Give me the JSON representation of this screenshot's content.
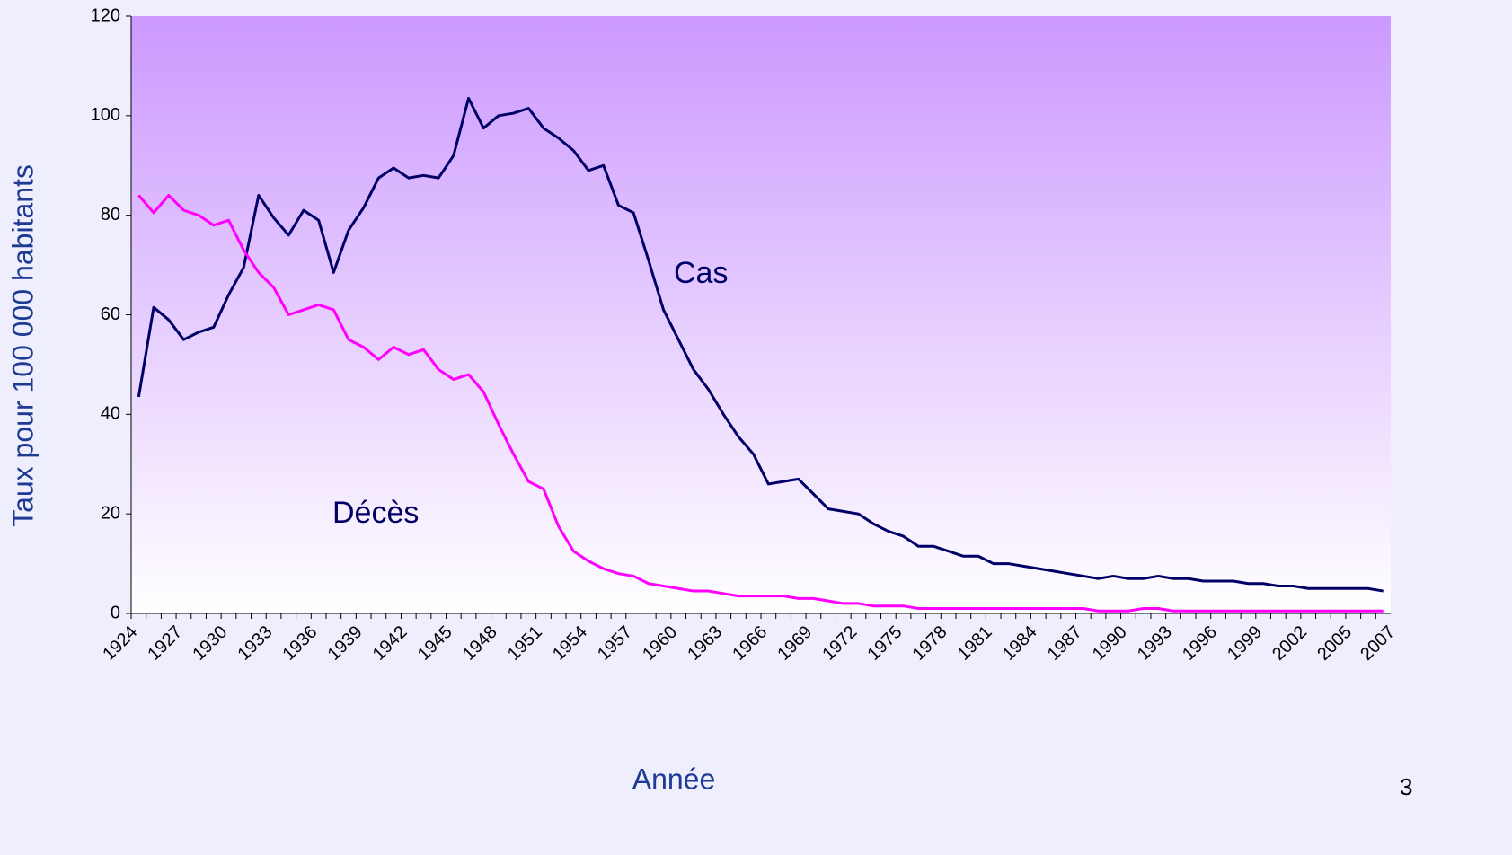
{
  "chart_data": {
    "type": "line",
    "x_label": "Année",
    "y_label": "Taux pour 100 000 habitants",
    "annotations": [
      "Cas",
      "Décès"
    ],
    "page_number": "3",
    "categories": [
      "1924",
      null,
      null,
      "1927",
      null,
      null,
      "1930",
      null,
      null,
      "1933",
      null,
      null,
      "1936",
      null,
      null,
      "1939",
      null,
      null,
      "1942",
      null,
      null,
      "1945",
      null,
      null,
      "1948",
      null,
      null,
      "1951",
      null,
      null,
      "1954",
      null,
      null,
      "1957",
      null,
      null,
      "1960",
      null,
      null,
      "1963",
      null,
      null,
      "1966",
      null,
      null,
      "1969",
      null,
      null,
      "1972",
      null,
      null,
      "1975",
      null,
      null,
      "1978",
      null,
      null,
      "1981",
      null,
      null,
      "1984",
      null,
      null,
      "1987",
      null,
      null,
      "1990",
      null,
      null,
      "1993",
      null,
      null,
      "1996",
      null,
      null,
      "1999",
      null,
      null,
      "2002",
      null,
      null,
      "2005",
      null,
      "2007"
    ],
    "series": [
      {
        "name": "Cas",
        "color": "#000066",
        "values": [
          43.5,
          61.5,
          59,
          55,
          56.5,
          57.5,
          64,
          69.5,
          84,
          79.5,
          76,
          81,
          79,
          68.5,
          77,
          81.5,
          87.5,
          89.5,
          87.5,
          88,
          87.5,
          92,
          103.5,
          97.5,
          100,
          100.5,
          101.5,
          97.5,
          95.5,
          93,
          89,
          90,
          82,
          80.5,
          71,
          61,
          55,
          49,
          45,
          40,
          35.5,
          32,
          26,
          26.5,
          27,
          24,
          21,
          20.5,
          20,
          18,
          16.5,
          15.5,
          13.5,
          13.5,
          12.5,
          11.5,
          11.5,
          10,
          10,
          9.5,
          9,
          8.5,
          8,
          7.5,
          7,
          7.5,
          7,
          7,
          7.5,
          7,
          7,
          6.5,
          6.5,
          6.5,
          6,
          6,
          5.5,
          5.5,
          5,
          5,
          5,
          5,
          5,
          4.5
        ]
      },
      {
        "name": "Décès",
        "color": "#ff00ff",
        "values": [
          84,
          80.5,
          84,
          81,
          80,
          78,
          79,
          73,
          68.5,
          65.5,
          60,
          61,
          62,
          61,
          55,
          53.5,
          51,
          53.5,
          52,
          53,
          49,
          47,
          48,
          44.5,
          38,
          32,
          26.5,
          25,
          17.5,
          12.5,
          10.5,
          9,
          8,
          7.5,
          6,
          5.5,
          5,
          4.5,
          4.5,
          4,
          3.5,
          3.5,
          3.5,
          3.5,
          3,
          3,
          2.5,
          2,
          2,
          1.5,
          1.5,
          1.5,
          1,
          1,
          1,
          1,
          1,
          1,
          1,
          1,
          1,
          1,
          1,
          1,
          0.5,
          0.5,
          0.5,
          1,
          1,
          0.5,
          0.5,
          0.5,
          0.5,
          0.5,
          0.5,
          0.5,
          0.5,
          0.5,
          0.5,
          0.5,
          0.5,
          0.5,
          0.5,
          0.5
        ]
      }
    ],
    "ylim": [
      0,
      120
    ],
    "yticks": [
      0,
      20,
      40,
      60,
      80,
      100,
      120
    ]
  }
}
